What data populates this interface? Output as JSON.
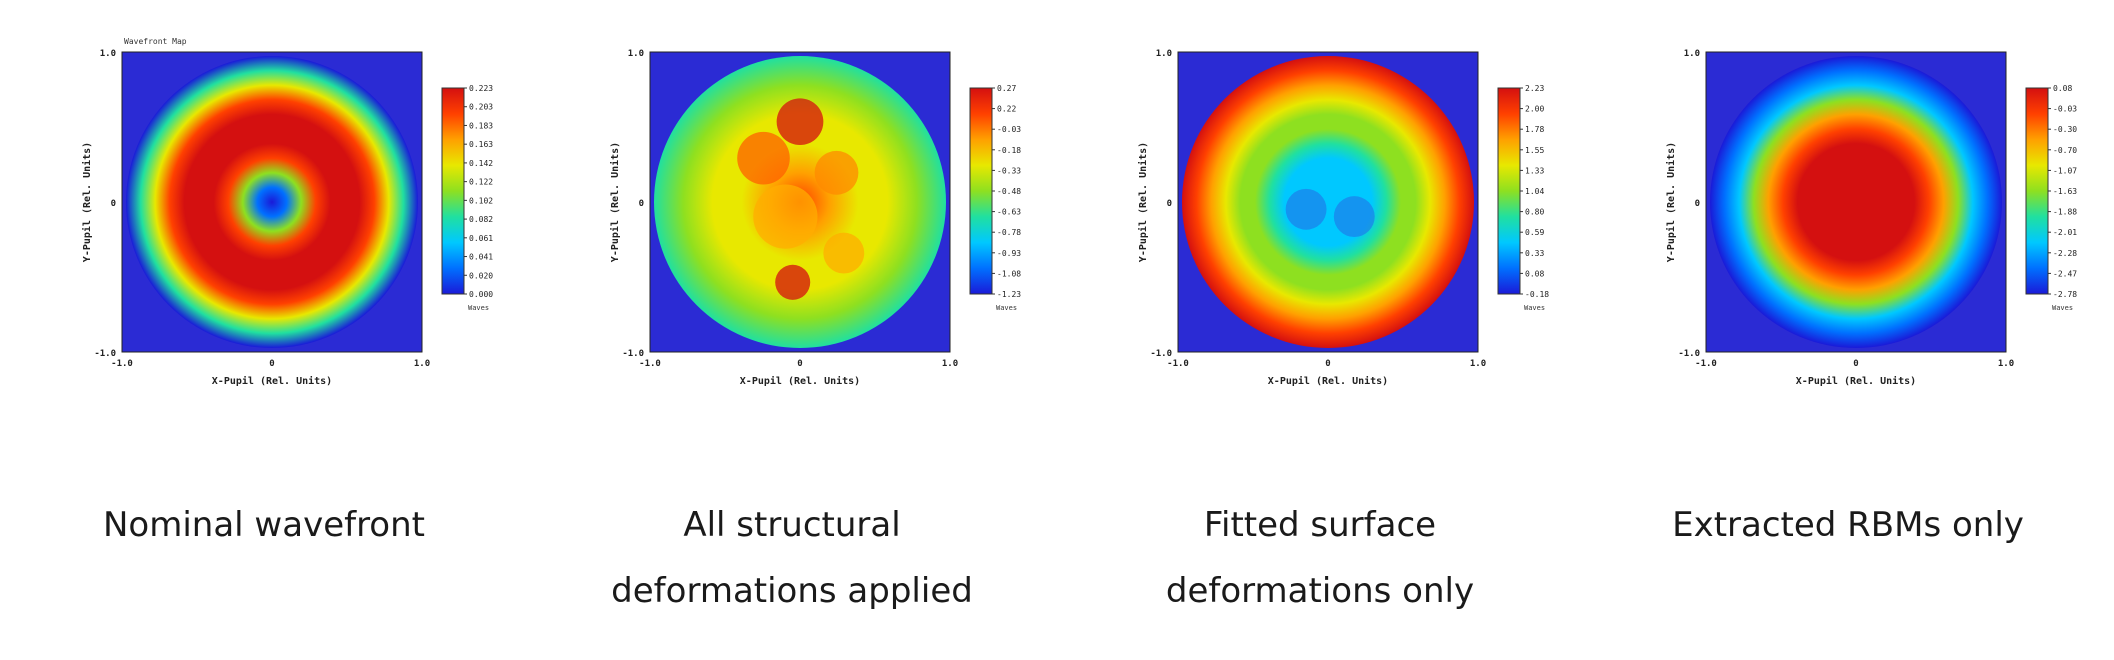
{
  "chart_data": [
    {
      "type": "heatmap",
      "caption": [
        "Nominal wavefront"
      ],
      "header": "Wavefront Map",
      "xlabel": "X-Pupil (Rel. Units)",
      "ylabel": "Y-Pupil (Rel. Units)",
      "x_ticks": [
        "-1.0",
        "0",
        "1.0"
      ],
      "y_ticks": [
        "1.0",
        "0",
        "-1.0"
      ],
      "colorbar_unit": "Waves",
      "colorbar_ticks": [
        "0.223",
        "0.203",
        "0.183",
        "0.163",
        "0.142",
        "0.122",
        "0.102",
        "0.082",
        "0.061",
        "0.041",
        "0.020",
        "0.000"
      ],
      "range": [
        0.0,
        0.223
      ],
      "pattern": "ring",
      "radial_values": [
        0.0,
        0.04,
        0.12,
        0.2,
        0.223,
        0.223,
        0.223,
        0.2,
        0.14,
        0.07,
        0.0
      ],
      "background": "#2b2bd4"
    },
    {
      "type": "heatmap",
      "caption": [
        "All structural",
        "deformations applied"
      ],
      "xlabel": "X-Pupil (Rel. Units)",
      "ylabel": "Y-Pupil (Rel. Units)",
      "x_ticks": [
        "-1.0",
        "0",
        "1.0"
      ],
      "y_ticks": [
        "1.0",
        "0",
        "-1.0"
      ],
      "colorbar_unit": "Waves",
      "colorbar_ticks": [
        "0.27",
        "0.22",
        "-0.03",
        "-0.18",
        "-0.33",
        "-0.48",
        "-0.63",
        "-0.78",
        "-0.93",
        "-1.08",
        "-1.23"
      ],
      "range": [
        -1.23,
        0.27
      ],
      "pattern": "blobs",
      "radial_values": [
        0.0,
        -0.1,
        -0.2,
        -0.35,
        -0.55,
        -0.75
      ],
      "background": "#2b2bd4"
    },
    {
      "type": "heatmap",
      "caption": [
        "Fitted surface",
        "deformations only"
      ],
      "xlabel": "X-Pupil (Rel. Units)",
      "ylabel": "Y-Pupil (Rel. Units)",
      "x_ticks": [
        "-1.0",
        "0",
        "1.0"
      ],
      "y_ticks": [
        "1.0",
        "0",
        "-1.0"
      ],
      "colorbar_unit": "Waves",
      "colorbar_ticks": [
        "2.23",
        "2.00",
        "1.78",
        "1.55",
        "1.33",
        "1.04",
        "0.80",
        "0.59",
        "0.33",
        "0.08",
        "-0.18"
      ],
      "range": [
        -0.18,
        2.23
      ],
      "pattern": "bowl",
      "radial_values": [
        0.3,
        0.35,
        0.45,
        0.55,
        0.75,
        0.95,
        1.15,
        1.35,
        1.6,
        1.9,
        2.23
      ],
      "background": "#2b2bd4"
    },
    {
      "type": "heatmap",
      "caption": [
        "Extracted RBMs only"
      ],
      "xlabel": "X-Pupil (Rel. Units)",
      "ylabel": "Y-Pupil (Rel. Units)",
      "x_ticks": [
        "-1.0",
        "0",
        "1.0"
      ],
      "y_ticks": [
        "1.0",
        "0",
        "-1.0"
      ],
      "colorbar_unit": "Waves",
      "colorbar_ticks": [
        "0.08",
        "-0.03",
        "-0.30",
        "-0.70",
        "-1.07",
        "-1.63",
        "-1.88",
        "-2.01",
        "-2.28",
        "-2.47",
        "-2.78"
      ],
      "range": [
        -2.78,
        0.08
      ],
      "pattern": "dome",
      "radial_values": [
        0.08,
        0.08,
        0.08,
        0.08,
        0.05,
        -0.1,
        -0.6,
        -1.3,
        -2.0,
        -2.5,
        -2.78
      ],
      "background": "#2b2bd4"
    }
  ]
}
